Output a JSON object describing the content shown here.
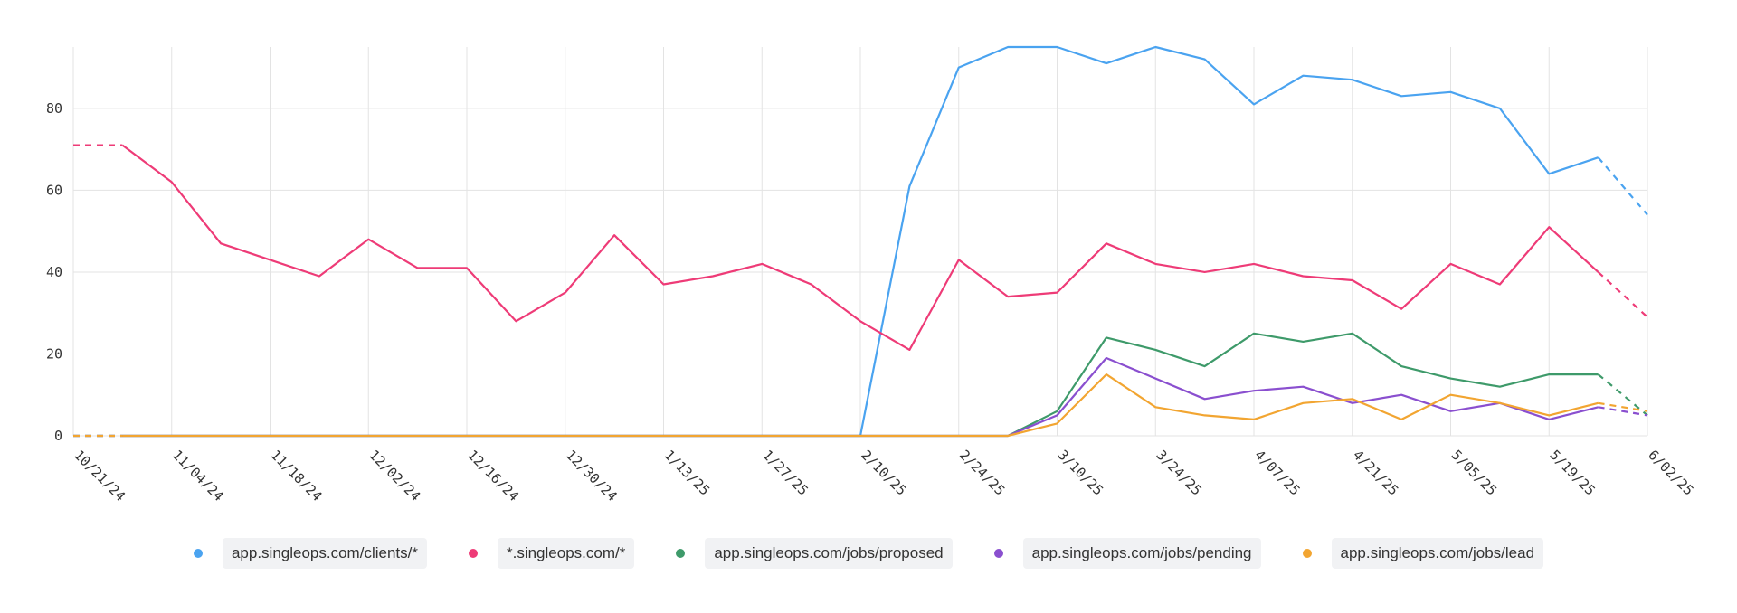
{
  "chart_data": {
    "type": "line",
    "x": [
      "10/21/24",
      "10/28/24",
      "11/04/24",
      "11/11/24",
      "11/18/24",
      "11/25/24",
      "12/02/24",
      "12/09/24",
      "12/16/24",
      "12/23/24",
      "12/30/24",
      "1/06/25",
      "1/13/25",
      "1/20/25",
      "1/27/25",
      "2/03/25",
      "2/10/25",
      "2/17/25",
      "2/24/25",
      "3/03/25",
      "3/10/25",
      "3/17/25",
      "3/24/25",
      "3/31/25",
      "4/07/25",
      "4/14/25",
      "4/21/25",
      "4/28/25",
      "5/05/25",
      "5/12/25",
      "5/19/25",
      "5/26/25",
      "6/02/25"
    ],
    "xticks": [
      "10/21/24",
      "11/04/24",
      "11/18/24",
      "12/02/24",
      "12/16/24",
      "12/30/24",
      "1/13/25",
      "1/27/25",
      "2/10/25",
      "2/24/25",
      "3/10/25",
      "3/24/25",
      "4/07/25",
      "4/21/25",
      "5/05/25",
      "5/19/25",
      "6/02/25"
    ],
    "yticks": [
      "0",
      "20",
      "40",
      "60",
      "80"
    ],
    "ylim": [
      0,
      95
    ],
    "grid": true,
    "legend_position": "bottom",
    "dashed_segments": "first and last interval of each series",
    "series": [
      {
        "name": "app.singleops.com/clients/*",
        "color": "#4aa3f0",
        "values": [
          0,
          0,
          0,
          0,
          0,
          0,
          0,
          0,
          0,
          0,
          0,
          0,
          0,
          0,
          0,
          0,
          0,
          61,
          90,
          95,
          95,
          91,
          95,
          92,
          81,
          88,
          87,
          83,
          84,
          80,
          64,
          68,
          54
        ]
      },
      {
        "name": "*.singleops.com/*",
        "color": "#ee3b77",
        "values": [
          71,
          71,
          62,
          47,
          43,
          39,
          48,
          41,
          41,
          28,
          35,
          49,
          37,
          39,
          42,
          37,
          28,
          21,
          43,
          34,
          35,
          47,
          42,
          40,
          42,
          39,
          38,
          31,
          42,
          37,
          51,
          40,
          29
        ]
      },
      {
        "name": "app.singleops.com/jobs/proposed",
        "color": "#3e9a6a",
        "values": [
          0,
          0,
          0,
          0,
          0,
          0,
          0,
          0,
          0,
          0,
          0,
          0,
          0,
          0,
          0,
          0,
          0,
          0,
          0,
          0,
          6,
          24,
          21,
          17,
          25,
          23,
          25,
          17,
          14,
          12,
          15,
          15,
          5
        ]
      },
      {
        "name": "app.singleops.com/jobs/pending",
        "color": "#8a4fcf",
        "values": [
          0,
          0,
          0,
          0,
          0,
          0,
          0,
          0,
          0,
          0,
          0,
          0,
          0,
          0,
          0,
          0,
          0,
          0,
          0,
          0,
          5,
          19,
          14,
          9,
          11,
          12,
          8,
          10,
          6,
          8,
          4,
          7,
          5
        ]
      },
      {
        "name": "app.singleops.com/jobs/lead",
        "color": "#f2a531",
        "values": [
          0,
          0,
          0,
          0,
          0,
          0,
          0,
          0,
          0,
          0,
          0,
          0,
          0,
          0,
          0,
          0,
          0,
          0,
          0,
          0,
          3,
          15,
          7,
          5,
          4,
          8,
          9,
          4,
          10,
          8,
          5,
          8,
          6
        ]
      }
    ]
  }
}
